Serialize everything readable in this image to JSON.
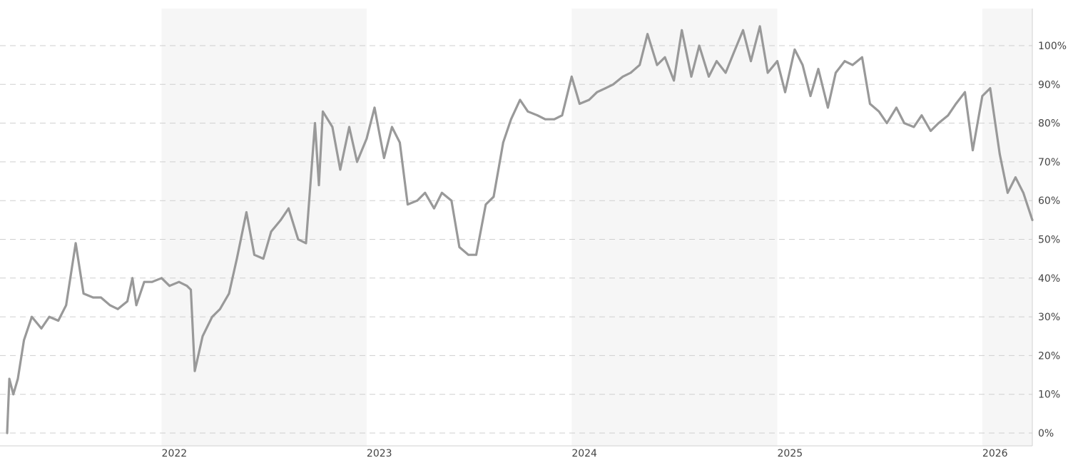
{
  "chart_data": {
    "type": "line",
    "title": "",
    "xlabel": "",
    "ylabel": "",
    "x_ticks": [
      "2022",
      "2023",
      "2024",
      "2025",
      "2026"
    ],
    "y_ticks": [
      "0%",
      "10%",
      "20%",
      "30%",
      "40%",
      "50%",
      "60%",
      "70%",
      "80%",
      "90%",
      "100%"
    ],
    "ylim": [
      0,
      106
    ],
    "xlim": [
      "2021-04-01",
      "2026-03-31"
    ],
    "grid": true,
    "alternating_year_shading": true,
    "colors": {
      "line": "#999999",
      "band": "#f6f6f6",
      "grid": "#cfcfcf",
      "axis": "#d0d0d0",
      "tick_text": "#444444"
    },
    "series": [
      {
        "x": [
          "2021-04-01",
          "2021-04-05",
          "2021-04-12",
          "2021-04-20",
          "2021-05-01",
          "2021-05-15",
          "2021-06-01",
          "2021-06-15",
          "2021-07-01",
          "2021-07-15",
          "2021-08-01",
          "2021-08-15",
          "2021-09-01",
          "2021-09-15",
          "2021-10-01",
          "2021-10-15",
          "2021-11-01",
          "2021-11-10",
          "2021-11-17",
          "2021-12-01",
          "2021-12-15",
          "2022-01-01",
          "2022-01-15",
          "2022-02-01",
          "2022-02-15",
          "2022-02-22",
          "2022-03-01",
          "2022-03-15",
          "2022-04-01",
          "2022-04-15",
          "2022-05-01",
          "2022-05-15",
          "2022-06-01",
          "2022-06-15",
          "2022-07-01",
          "2022-07-15",
          "2022-08-01",
          "2022-08-15",
          "2022-09-01",
          "2022-09-15",
          "2022-10-01",
          "2022-10-08",
          "2022-10-15",
          "2022-11-01",
          "2022-11-15",
          "2022-12-01",
          "2022-12-15",
          "2023-01-01",
          "2023-01-15",
          "2023-02-01",
          "2023-02-15",
          "2023-03-01",
          "2023-03-15",
          "2023-04-01",
          "2023-04-15",
          "2023-05-01",
          "2023-05-15",
          "2023-06-01",
          "2023-06-15",
          "2023-07-01",
          "2023-07-15",
          "2023-08-01",
          "2023-08-15",
          "2023-09-01",
          "2023-09-15",
          "2023-10-01",
          "2023-10-15",
          "2023-11-01",
          "2023-11-15",
          "2023-12-01",
          "2023-12-15",
          "2024-01-01",
          "2024-01-15",
          "2024-02-01",
          "2024-02-15",
          "2024-03-01",
          "2024-03-15",
          "2024-04-01",
          "2024-04-15",
          "2024-05-01",
          "2024-05-15",
          "2024-06-01",
          "2024-06-15",
          "2024-07-01",
          "2024-07-15",
          "2024-08-01",
          "2024-08-15",
          "2024-09-01",
          "2024-09-15",
          "2024-10-01",
          "2024-10-15",
          "2024-11-01",
          "2024-11-15",
          "2024-12-01",
          "2024-12-15",
          "2025-01-01",
          "2025-01-15",
          "2025-02-01",
          "2025-02-15",
          "2025-03-01",
          "2025-03-15",
          "2025-04-01",
          "2025-04-15",
          "2025-05-01",
          "2025-05-15",
          "2025-06-01",
          "2025-06-15",
          "2025-07-01",
          "2025-07-15",
          "2025-08-01",
          "2025-08-15",
          "2025-09-01",
          "2025-09-15",
          "2025-10-01",
          "2025-10-15",
          "2025-11-01",
          "2025-11-15",
          "2025-12-01",
          "2025-12-15",
          "2026-01-01",
          "2026-01-15",
          "2026-02-01",
          "2026-02-15",
          "2026-03-01",
          "2026-03-15",
          "2026-03-31"
        ],
        "values": [
          0,
          14,
          10,
          14,
          24,
          30,
          27,
          30,
          29,
          33,
          49,
          36,
          35,
          35,
          33,
          32,
          34,
          40,
          33,
          39,
          39,
          40,
          38,
          39,
          38,
          37,
          16,
          25,
          30,
          32,
          36,
          45,
          57,
          46,
          45,
          52,
          55,
          58,
          50,
          49,
          80,
          64,
          83,
          79,
          68,
          79,
          70,
          76,
          84,
          71,
          79,
          75,
          59,
          60,
          62,
          58,
          62,
          60,
          48,
          46,
          46,
          59,
          61,
          75,
          81,
          86,
          83,
          82,
          81,
          81,
          82,
          92,
          85,
          86,
          88,
          89,
          90,
          92,
          93,
          95,
          103,
          95,
          97,
          91,
          104,
          92,
          100,
          92,
          96,
          93,
          98,
          104,
          96,
          105,
          93,
          96,
          88,
          99,
          95,
          87,
          94,
          84,
          93,
          96,
          95,
          97,
          85,
          83,
          80,
          84,
          80,
          79,
          82,
          78,
          80,
          82,
          85,
          88,
          73,
          87,
          89,
          72,
          62,
          66,
          62,
          55
        ],
        "color": "#999999"
      }
    ]
  }
}
